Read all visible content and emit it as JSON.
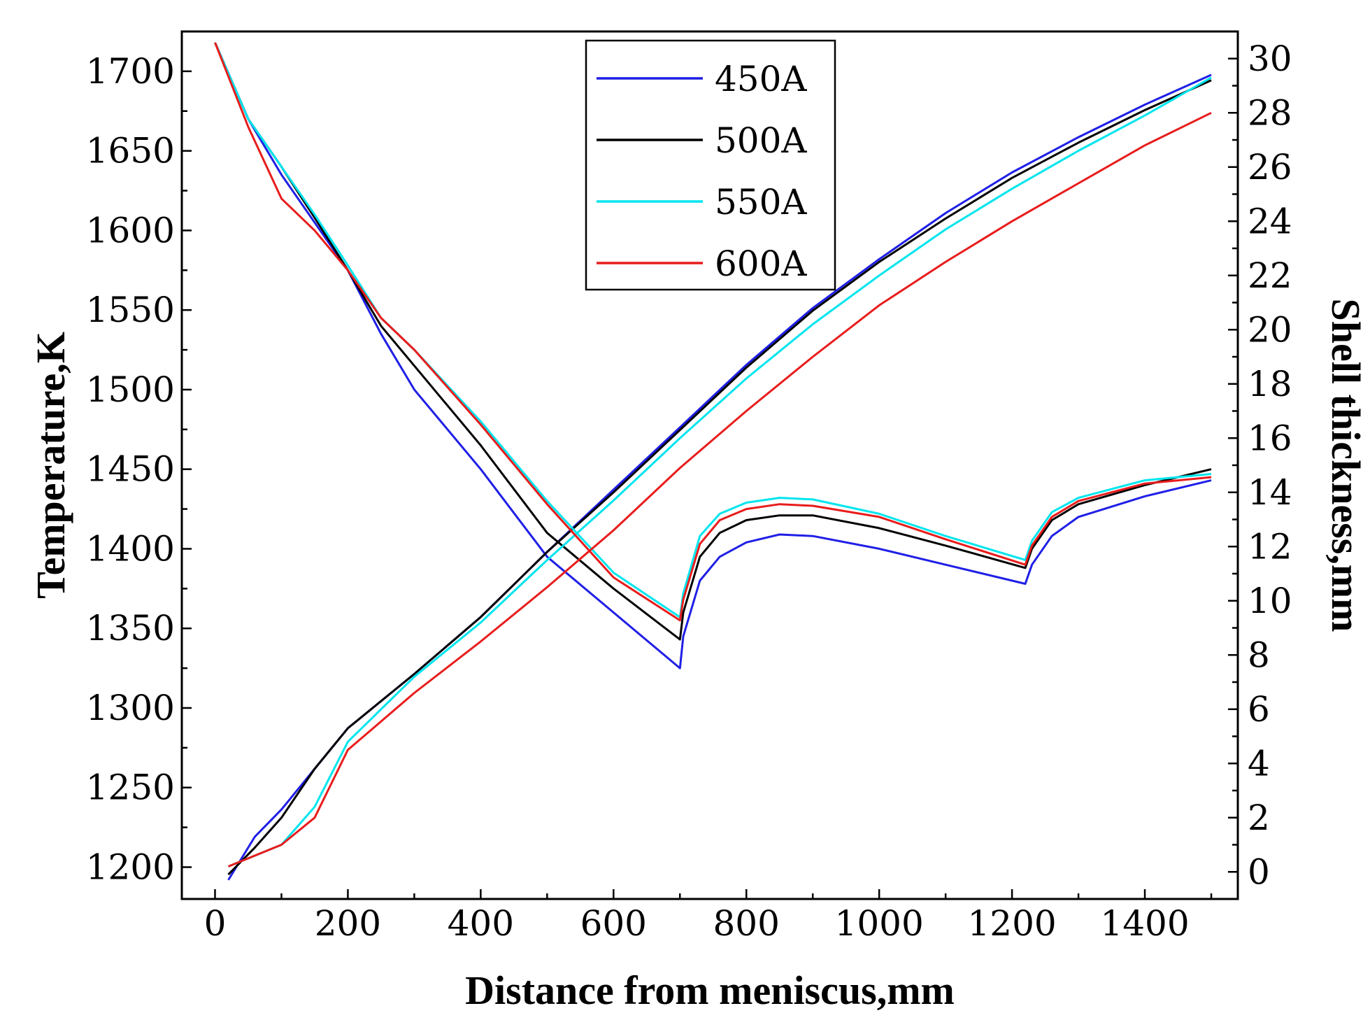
{
  "chart_data": {
    "type": "line",
    "title": "",
    "xlabel": "Distance from meniscus,mm",
    "ylabel": "Temperature,K",
    "y2label": "Shell thickness,mm",
    "xlim": [
      -50,
      1540
    ],
    "ylim": [
      1180,
      1725
    ],
    "y2lim": [
      -1,
      31
    ],
    "xticks": [
      0,
      200,
      400,
      600,
      800,
      1000,
      1200,
      1400
    ],
    "xtick_labels": [
      "0",
      "200",
      "400",
      "600",
      "800",
      "1000",
      "1200",
      "1400"
    ],
    "yticks": [
      1200,
      1250,
      1300,
      1350,
      1400,
      1450,
      1500,
      1550,
      1600,
      1650,
      1700
    ],
    "ytick_labels": [
      "1200",
      "1250",
      "1300",
      "1350",
      "1400",
      "1450",
      "1500",
      "1550",
      "1600",
      "1650",
      "1700"
    ],
    "y2ticks": [
      0,
      2,
      4,
      6,
      8,
      10,
      12,
      14,
      16,
      18,
      20,
      22,
      24,
      26,
      28,
      30
    ],
    "y2tick_labels": [
      "0",
      "2",
      "4",
      "6",
      "8",
      "10",
      "12",
      "14",
      "16",
      "18",
      "20",
      "22",
      "24",
      "26",
      "28",
      "30"
    ],
    "legend_position": "top-center",
    "series": [
      {
        "name": "450A",
        "color": "#1f1fe6",
        "temperature": {
          "x": [
            0,
            50,
            100,
            150,
            200,
            250,
            300,
            400,
            500,
            600,
            700,
            705,
            730,
            760,
            800,
            850,
            900,
            1000,
            1100,
            1220,
            1230,
            1260,
            1300,
            1400,
            1500
          ],
          "y": [
            1718,
            1670,
            1635,
            1605,
            1575,
            1535,
            1500,
            1450,
            1395,
            1360,
            1325,
            1345,
            1380,
            1395,
            1404,
            1409,
            1408,
            1400,
            1390,
            1378,
            1390,
            1408,
            1420,
            1433,
            1443
          ]
        },
        "shell": {
          "x": [
            20,
            60,
            100,
            150,
            200,
            300,
            400,
            500,
            600,
            700,
            800,
            900,
            1000,
            1100,
            1200,
            1300,
            1400,
            1500
          ],
          "y": [
            -0.3,
            1.3,
            2.3,
            3.8,
            5.3,
            7.3,
            9.4,
            11.8,
            14.1,
            16.4,
            18.7,
            20.8,
            22.6,
            24.3,
            25.8,
            27.1,
            28.3,
            29.4
          ]
        }
      },
      {
        "name": "500A",
        "color": "#000000",
        "temperature": {
          "x": [
            0,
            50,
            100,
            150,
            200,
            250,
            300,
            400,
            500,
            600,
            700,
            705,
            730,
            760,
            800,
            850,
            900,
            1000,
            1100,
            1220,
            1230,
            1260,
            1300,
            1400,
            1500
          ],
          "y": [
            1718,
            1670,
            1640,
            1608,
            1575,
            1540,
            1515,
            1465,
            1410,
            1375,
            1343,
            1360,
            1395,
            1410,
            1418,
            1421,
            1421,
            1413,
            1402,
            1388,
            1400,
            1418,
            1428,
            1440,
            1450
          ]
        },
        "shell": {
          "x": [
            20,
            60,
            100,
            150,
            200,
            300,
            400,
            500,
            600,
            700,
            800,
            900,
            1000,
            1100,
            1200,
            1300,
            1400,
            1500
          ],
          "y": [
            -0.1,
            0.9,
            2.0,
            3.8,
            5.3,
            7.3,
            9.4,
            11.8,
            14.0,
            16.3,
            18.6,
            20.7,
            22.5,
            24.1,
            25.6,
            26.9,
            28.1,
            29.2
          ]
        }
      },
      {
        "name": "550A",
        "color": "#00e5ee",
        "temperature": {
          "x": [
            0,
            50,
            100,
            150,
            200,
            250,
            300,
            400,
            500,
            600,
            700,
            705,
            730,
            760,
            800,
            850,
            900,
            1000,
            1100,
            1220,
            1230,
            1260,
            1300,
            1400,
            1500
          ],
          "y": [
            1718,
            1670,
            1640,
            1610,
            1578,
            1545,
            1525,
            1480,
            1430,
            1385,
            1357,
            1372,
            1408,
            1422,
            1429,
            1432,
            1431,
            1422,
            1408,
            1393,
            1405,
            1423,
            1432,
            1443,
            1447
          ]
        },
        "shell": {
          "x": [
            20,
            60,
            100,
            150,
            200,
            300,
            400,
            500,
            600,
            700,
            800,
            900,
            1000,
            1100,
            1200,
            1300,
            1400,
            1500
          ],
          "y": [
            0.2,
            0.6,
            1.0,
            2.4,
            4.8,
            7.2,
            9.2,
            11.5,
            13.7,
            16.0,
            18.2,
            20.2,
            22.0,
            23.7,
            25.2,
            26.6,
            27.9,
            29.3
          ]
        }
      },
      {
        "name": "600A",
        "color": "#e81c1c",
        "temperature": {
          "x": [
            0,
            50,
            100,
            150,
            200,
            250,
            300,
            400,
            500,
            600,
            700,
            705,
            730,
            760,
            800,
            850,
            900,
            1000,
            1100,
            1220,
            1230,
            1260,
            1300,
            1400,
            1500
          ],
          "y": [
            1718,
            1665,
            1620,
            1600,
            1575,
            1545,
            1525,
            1478,
            1428,
            1382,
            1355,
            1368,
            1403,
            1418,
            1425,
            1428,
            1427,
            1420,
            1406,
            1390,
            1402,
            1420,
            1430,
            1441,
            1445
          ]
        },
        "shell": {
          "x": [
            20,
            60,
            100,
            150,
            200,
            300,
            400,
            500,
            600,
            700,
            800,
            900,
            1000,
            1100,
            1200,
            1300,
            1400,
            1500
          ],
          "y": [
            0.2,
            0.6,
            1.0,
            2.0,
            4.5,
            6.6,
            8.5,
            10.5,
            12.6,
            14.9,
            17.0,
            19.0,
            20.9,
            22.5,
            24.0,
            25.4,
            26.8,
            28.0
          ]
        }
      }
    ]
  }
}
